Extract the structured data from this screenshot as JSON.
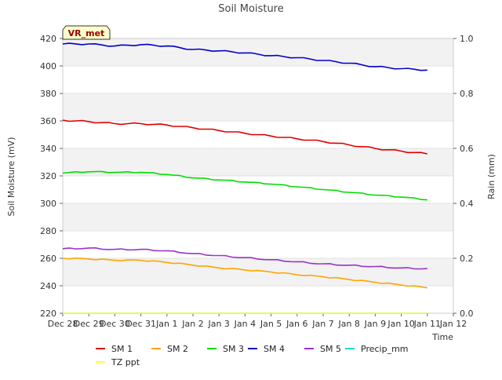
{
  "chart_data": {
    "type": "line",
    "title": "Soil Moisture",
    "xlabel": "Time",
    "ylabel": "Soil Moisture (mV)",
    "y2label": "Rain (mm)",
    "badge": "VR_met",
    "xlim": [
      "2023-12-28",
      "2024-01-12"
    ],
    "ylim": [
      220,
      420
    ],
    "y2lim": [
      0.0,
      1.0
    ],
    "x_ticks": [
      {
        "date": "2023-12-28",
        "label": "Dec 28"
      },
      {
        "date": "2023-12-29",
        "label": "Dec 29"
      },
      {
        "date": "2023-12-30",
        "label": "Dec 30"
      },
      {
        "date": "2023-12-31",
        "label": "Dec 31"
      },
      {
        "date": "2024-01-01",
        "label": "Jan 1"
      },
      {
        "date": "2024-01-02",
        "label": "Jan 2"
      },
      {
        "date": "2024-01-03",
        "label": "Jan 3"
      },
      {
        "date": "2024-01-04",
        "label": "Jan 4"
      },
      {
        "date": "2024-01-05",
        "label": "Jan 5"
      },
      {
        "date": "2024-01-06",
        "label": "Jan 6"
      },
      {
        "date": "2024-01-07",
        "label": "Jan 7"
      },
      {
        "date": "2024-01-08",
        "label": "Jan 8"
      },
      {
        "date": "2024-01-09",
        "label": "Jan 9"
      },
      {
        "date": "2024-01-10",
        "label": "Jan 10"
      },
      {
        "date": "2024-01-11",
        "label": "Jan 11"
      },
      {
        "date": "2024-01-12",
        "label": "Jan 12"
      }
    ],
    "y_ticks": [
      220,
      240,
      260,
      280,
      300,
      320,
      340,
      360,
      380,
      400,
      420
    ],
    "y2_ticks": [
      {
        "value": 0.0,
        "label": "0.0"
      },
      {
        "value": 0.2,
        "label": "0.2"
      },
      {
        "value": 0.4,
        "label": "0.4"
      },
      {
        "value": 0.6,
        "label": "0.6"
      },
      {
        "value": 0.8,
        "label": "0.8"
      },
      {
        "value": 1.0,
        "label": "1.0"
      }
    ],
    "x": [
      "2023-12-28",
      "2023-12-29",
      "2023-12-30",
      "2023-12-31",
      "2024-01-01",
      "2024-01-02",
      "2024-01-03",
      "2024-01-04",
      "2024-01-05",
      "2024-01-06",
      "2024-01-07",
      "2024-01-08",
      "2024-01-09",
      "2024-01-10",
      "2024-01-11"
    ],
    "grid": "horizontal bands",
    "legend": "bottom-center",
    "series": [
      {
        "name": "SM 1",
        "color": "#dd0000",
        "axis": "left",
        "values": [
          360.5,
          359.5,
          358.0,
          358.0,
          357.0,
          355.0,
          353.0,
          351.0,
          349.0,
          347.0,
          345.0,
          342.5,
          340.0,
          338.0,
          336.0
        ]
      },
      {
        "name": "SM 2",
        "color": "#ffa500",
        "axis": "left",
        "values": [
          260.0,
          259.5,
          258.5,
          258.5,
          257.0,
          255.0,
          253.0,
          251.5,
          250.0,
          248.0,
          246.5,
          244.5,
          242.5,
          240.5,
          238.5
        ]
      },
      {
        "name": "SM 3",
        "color": "#00dd00",
        "axis": "left",
        "values": [
          322.0,
          323.0,
          322.5,
          322.5,
          321.0,
          318.5,
          317.0,
          315.5,
          314.0,
          312.0,
          310.0,
          308.0,
          306.0,
          304.5,
          302.5
        ]
      },
      {
        "name": "SM 4",
        "color": "#0000cc",
        "axis": "left",
        "values": [
          416.0,
          416.0,
          414.5,
          415.5,
          414.5,
          412.0,
          411.0,
          409.5,
          407.5,
          406.0,
          404.0,
          402.0,
          399.5,
          398.0,
          397.0
        ]
      },
      {
        "name": "SM 5",
        "color": "#9933cc",
        "axis": "left",
        "values": [
          267.0,
          267.5,
          266.5,
          266.5,
          265.5,
          263.5,
          262.0,
          260.5,
          259.0,
          257.5,
          256.0,
          255.0,
          254.0,
          253.0,
          252.5
        ]
      },
      {
        "name": "Precip_mm",
        "color": "#00dddd",
        "axis": "right",
        "values": [
          0,
          0,
          0,
          0,
          0,
          0,
          0,
          0,
          0,
          0,
          0,
          0,
          0,
          0,
          0
        ]
      },
      {
        "name": "TZ ppt",
        "color": "#ffff33",
        "axis": "right",
        "values": [
          0,
          0,
          0,
          0,
          0,
          0,
          0,
          0,
          0,
          0,
          0,
          0,
          0,
          0,
          0
        ]
      }
    ]
  }
}
